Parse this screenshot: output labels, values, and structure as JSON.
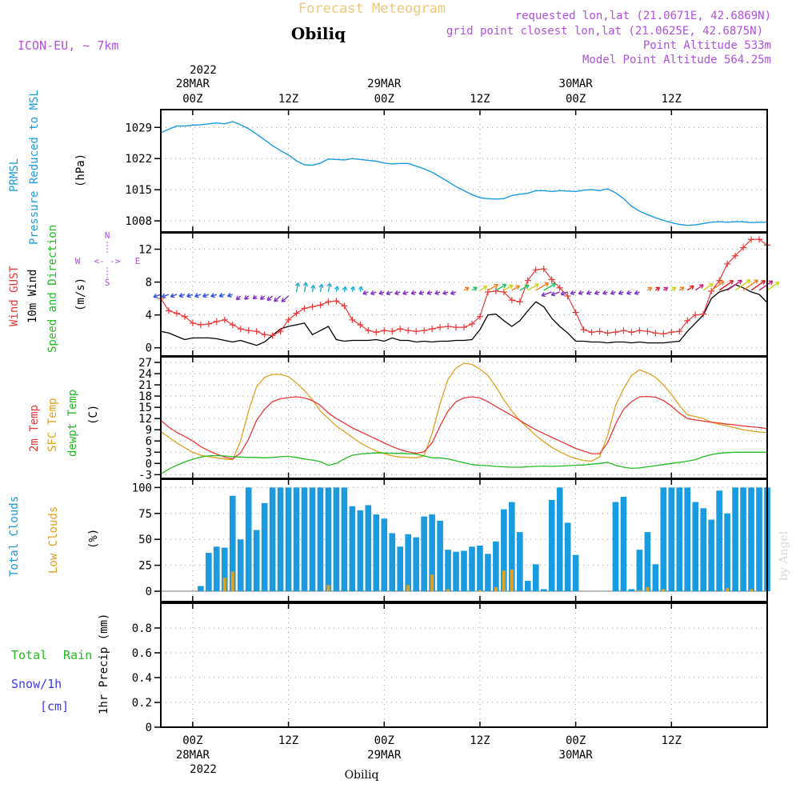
{
  "header": {
    "product": "Forecast Meteogram",
    "station": "Obiliq",
    "model": "ICON-EU, ~ 7km",
    "requested": "requested lon,lat (21.0671E, 42.6869N)",
    "gridpoint": "grid point closest lon,lat (21.0625E, 42.6875N)",
    "point_alt": "Point Altitude 533m",
    "model_alt": "Model Point Altitude 564.25m"
  },
  "colors": {
    "pressure": "#1a9be0",
    "gust": "#e83838",
    "wind": "#000000",
    "direction": "#22bb22",
    "temp2m": "#e83838",
    "sfc": "#e0a020",
    "dew": "#22bb22",
    "total_clouds": "#1a9be0",
    "low_clouds": "#e0a020",
    "rain": "#22bb22",
    "snow": "#3a3aee",
    "info": "#b050e0"
  },
  "axis_top": {
    "year": "2022",
    "labels": [
      {
        "h": 0,
        "l1": "28MAR",
        "l2": "00Z"
      },
      {
        "h": 12,
        "l1": "",
        "l2": "12Z"
      },
      {
        "h": 24,
        "l1": "29MAR",
        "l2": "00Z"
      },
      {
        "h": 36,
        "l1": "",
        "l2": "12Z"
      },
      {
        "h": 48,
        "l1": "30MAR",
        "l2": "00Z"
      },
      {
        "h": 60,
        "l1": "",
        "l2": "12Z"
      }
    ]
  },
  "axis_bottom": {
    "year": "2022",
    "labels": [
      {
        "h": 0,
        "l1": "00Z",
        "l2": "28MAR"
      },
      {
        "h": 12,
        "l1": "12Z",
        "l2": ""
      },
      {
        "h": 24,
        "l1": "00Z",
        "l2": "29MAR"
      },
      {
        "h": 36,
        "l1": "12Z",
        "l2": ""
      },
      {
        "h": 48,
        "l1": "00Z",
        "l2": "30MAR"
      },
      {
        "h": 60,
        "l1": "12Z",
        "l2": ""
      }
    ],
    "station": "Obiliq"
  },
  "watermark": "by Angel",
  "panels": {
    "pressure": {
      "title1": "PRMSL",
      "title2": "Pressure Reduced to MSL",
      "unit": "(hPa)",
      "ticks": [
        1008,
        1015,
        1022,
        1029
      ]
    },
    "wind": {
      "title1": "Wind GUST",
      "title2": "10m Wind",
      "title3": "Speed and Direction",
      "unit": "(m/s)",
      "ticks": [
        0,
        4,
        8,
        12
      ],
      "compass_n": "N",
      "compass_s": "S",
      "compass_w": "W",
      "compass_e": "E",
      "compass_arrow": "<- ->"
    },
    "temp": {
      "title1": "2m Temp",
      "title2": "SFC Temp",
      "title3": "dewpt Temp",
      "unit": "(C)",
      "ticks": [
        -3,
        0,
        3,
        6,
        9,
        12,
        15,
        18,
        21,
        24,
        27
      ]
    },
    "clouds": {
      "title1": "Total Clouds",
      "title2": "Low Clouds",
      "unit": "(%)",
      "ticks": [
        0,
        25,
        50,
        75,
        100
      ]
    },
    "precip": {
      "title1": "Total",
      "title1b": "Rain",
      "title2": "Snow/1h",
      "title3": "[cm]",
      "unit": "1hr Precip (mm)",
      "ticks": [
        "0",
        "0.2",
        "0.4",
        "0.6",
        "0.8"
      ]
    }
  },
  "chart_data": [
    {
      "type": "line",
      "title": "PRMSL Pressure Reduced to MSL",
      "ylabel": "(hPa)",
      "ylim": [
        1005.5,
        1033
      ],
      "x_hours_from_28MAR_00Z": [
        -4,
        -3,
        -2,
        -1,
        0,
        1,
        2,
        3,
        4,
        5,
        6,
        7,
        8,
        9,
        10,
        11,
        12,
        13,
        14,
        15,
        16,
        17,
        18,
        19,
        20,
        21,
        22,
        23,
        24,
        25,
        26,
        27,
        28,
        29,
        30,
        31,
        32,
        33,
        34,
        35,
        36,
        37,
        38,
        39,
        40,
        41,
        42,
        43,
        44,
        45,
        46,
        47,
        48,
        49,
        50,
        51,
        52,
        53,
        54,
        55,
        56,
        57,
        58,
        59,
        60,
        61,
        62,
        63,
        64,
        65,
        66,
        67,
        68,
        69,
        70,
        71,
        72
      ],
      "series": [
        {
          "name": "PRMSL",
          "values": [
            1027.8,
            1028.6,
            1029.3,
            1029.3,
            1029.5,
            1029.6,
            1029.8,
            1030.0,
            1029.8,
            1030.3,
            1029.6,
            1028.7,
            1027.5,
            1026.2,
            1024.9,
            1023.8,
            1022.8,
            1021.5,
            1020.6,
            1020.5,
            1021.0,
            1021.9,
            1021.8,
            1021.7,
            1022.0,
            1021.8,
            1021.6,
            1021.4,
            1021.0,
            1020.8,
            1020.9,
            1020.9,
            1020.3,
            1019.7,
            1018.9,
            1017.9,
            1016.8,
            1015.7,
            1014.8,
            1013.9,
            1013.2,
            1013.0,
            1012.9,
            1013.0,
            1013.7,
            1014.0,
            1014.2,
            1014.8,
            1014.8,
            1014.6,
            1014.8,
            1014.7,
            1014.6,
            1014.9,
            1015.0,
            1014.8,
            1015.2,
            1014.3,
            1013.0,
            1011.3,
            1010.2,
            1009.4,
            1008.7,
            1008.1,
            1007.6,
            1007.2,
            1007.0,
            1007.1,
            1007.4,
            1007.7,
            1007.8,
            1007.7,
            1007.8,
            1007.8,
            1007.6,
            1007.7,
            1007.7
          ]
        }
      ]
    },
    {
      "type": "line",
      "title": "Wind GUST / 10m Wind Speed and Direction",
      "ylabel": "(m/s)",
      "ylim": [
        -1,
        14
      ],
      "x_hours_from_28MAR_00Z": [
        -4,
        -3,
        -2,
        -1,
        0,
        1,
        2,
        3,
        4,
        5,
        6,
        7,
        8,
        9,
        10,
        11,
        12,
        13,
        14,
        15,
        16,
        17,
        18,
        19,
        20,
        21,
        22,
        23,
        24,
        25,
        26,
        27,
        28,
        29,
        30,
        31,
        32,
        33,
        34,
        35,
        36,
        37,
        38,
        39,
        40,
        41,
        42,
        43,
        44,
        45,
        46,
        47,
        48,
        49,
        50,
        51,
        52,
        53,
        54,
        55,
        56,
        57,
        58,
        59,
        60,
        61,
        62,
        63,
        64,
        65,
        66,
        67,
        68,
        69,
        70,
        71,
        72
      ],
      "series": [
        {
          "name": "Wind GUST",
          "values": [
            6.0,
            4.5,
            4.2,
            3.8,
            3.0,
            2.8,
            2.9,
            3.2,
            3.4,
            2.8,
            2.3,
            2.1,
            2.0,
            1.6,
            1.5,
            2.0,
            3.4,
            4.2,
            4.8,
            5.0,
            5.2,
            5.6,
            5.7,
            5.1,
            3.4,
            2.8,
            2.1,
            1.9,
            2.1,
            2.0,
            2.3,
            2.1,
            2.0,
            2.1,
            2.3,
            2.5,
            2.6,
            2.5,
            2.5,
            2.9,
            3.8,
            6.8,
            6.9,
            6.8,
            5.8,
            5.6,
            8.2,
            9.5,
            9.6,
            8.3,
            7.3,
            6.3,
            4.3,
            2.2,
            1.9,
            2.0,
            1.8,
            1.9,
            2.1,
            1.9,
            2.1,
            2.0,
            1.8,
            1.7,
            1.9,
            2.0,
            3.3,
            4.0,
            4.1,
            6.9,
            8.2,
            10.2,
            11.2,
            12.2,
            13.2,
            13.2,
            12.5
          ]
        },
        {
          "name": "10m Wind",
          "values": [
            2.0,
            1.8,
            1.4,
            1.0,
            1.2,
            1.2,
            1.2,
            1.1,
            0.9,
            0.7,
            0.9,
            0.6,
            0.3,
            0.7,
            1.5,
            2.3,
            2.6,
            2.8,
            3.0,
            1.6,
            2.1,
            2.6,
            1.0,
            0.8,
            0.9,
            0.9,
            0.9,
            1.0,
            0.8,
            1.2,
            0.9,
            0.9,
            0.7,
            0.8,
            0.7,
            0.8,
            0.8,
            0.9,
            0.9,
            1.0,
            2.2,
            4.0,
            4.1,
            3.3,
            2.6,
            3.3,
            4.5,
            5.6,
            5.0,
            3.6,
            2.6,
            1.8,
            0.8,
            0.8,
            0.7,
            0.7,
            0.6,
            0.7,
            0.7,
            0.6,
            0.7,
            0.6,
            0.6,
            0.6,
            0.7,
            0.8,
            2.0,
            3.0,
            4.0,
            6.0,
            6.8,
            7.1,
            7.7,
            7.3,
            6.8,
            6.5,
            5.5
          ]
        }
      ],
      "direction_note": "wind direction arrows from N/NE in first day, variable, SW in last day"
    },
    {
      "type": "line",
      "title": "2m Temp / SFC Temp / dewpt Temp",
      "ylabel": "(C)",
      "ylim": [
        -4,
        28.5
      ],
      "x_hours_from_28MAR_00Z": [
        -4,
        -3,
        -2,
        -1,
        0,
        1,
        2,
        3,
        4,
        5,
        6,
        7,
        8,
        9,
        10,
        11,
        12,
        13,
        14,
        15,
        16,
        17,
        18,
        19,
        20,
        21,
        22,
        23,
        24,
        25,
        26,
        27,
        28,
        29,
        30,
        31,
        32,
        33,
        34,
        35,
        36,
        37,
        38,
        39,
        40,
        41,
        42,
        43,
        44,
        45,
        46,
        47,
        48,
        49,
        50,
        51,
        52,
        53,
        54,
        55,
        56,
        57,
        58,
        59,
        60,
        61,
        62,
        63,
        64,
        65,
        66,
        67,
        68,
        69,
        70,
        71,
        72
      ],
      "series": [
        {
          "name": "2m Temp",
          "values": [
            11.5,
            9.7,
            8.3,
            7.2,
            6.0,
            4.5,
            3.4,
            2.5,
            1.7,
            1.2,
            2.8,
            6.5,
            11.5,
            14.5,
            16.5,
            17.3,
            17.6,
            17.8,
            17.5,
            16.8,
            15.5,
            13.5,
            12.0,
            10.8,
            9.5,
            8.5,
            7.5,
            6.5,
            5.5,
            4.5,
            3.7,
            3.1,
            2.7,
            3.1,
            5.5,
            10.0,
            14.0,
            16.5,
            17.5,
            17.8,
            17.5,
            16.5,
            15.2,
            14.0,
            12.8,
            11.5,
            10.2,
            9.0,
            8.0,
            7.0,
            6.0,
            5.0,
            4.0,
            3.3,
            2.6,
            2.6,
            5.5,
            10.5,
            14.5,
            16.5,
            17.8,
            17.9,
            17.7,
            16.8,
            15.3,
            13.5,
            12.0,
            11.6,
            11.3,
            11.0,
            10.8,
            10.5,
            10.3,
            10.0,
            9.8,
            9.6,
            9.3
          ]
        },
        {
          "name": "SFC Temp",
          "values": [
            8.5,
            7.0,
            5.5,
            4.2,
            3.0,
            2.2,
            1.8,
            1.5,
            1.2,
            1.0,
            6.0,
            14.0,
            20.5,
            23.0,
            23.8,
            23.8,
            23.2,
            21.5,
            19.5,
            17.0,
            14.0,
            12.0,
            10.0,
            8.5,
            7.0,
            5.5,
            4.3,
            3.3,
            2.6,
            2.0,
            1.7,
            1.6,
            1.5,
            2.0,
            8.0,
            16.0,
            22.5,
            25.5,
            26.8,
            26.5,
            25.2,
            23.5,
            20.5,
            17.0,
            14.0,
            11.5,
            9.5,
            7.5,
            5.8,
            4.3,
            3.1,
            2.1,
            1.3,
            0.8,
            0.6,
            1.8,
            7.5,
            15.5,
            20.0,
            23.5,
            25.0,
            24.2,
            23.0,
            21.0,
            18.5,
            15.5,
            13.0,
            12.5,
            12.0,
            11.0,
            10.5,
            10.0,
            9.5,
            9.0,
            8.7,
            8.4,
            8.2
          ]
        },
        {
          "name": "dewpt Temp",
          "values": [
            -2.8,
            -1.5,
            -0.5,
            0.4,
            1.1,
            1.7,
            2.0,
            2.1,
            2.0,
            1.8,
            1.7,
            1.6,
            1.6,
            1.5,
            1.6,
            1.8,
            1.9,
            1.6,
            1.2,
            0.9,
            0.5,
            -0.5,
            0.0,
            1.2,
            2.2,
            2.5,
            2.7,
            2.8,
            2.8,
            2.7,
            2.7,
            2.6,
            2.5,
            2.0,
            1.5,
            1.5,
            1.2,
            0.7,
            0.2,
            -0.3,
            -0.5,
            -0.6,
            -0.8,
            -0.9,
            -1.0,
            -1.0,
            -0.9,
            -0.8,
            -0.7,
            -0.8,
            -0.7,
            -0.6,
            -0.5,
            -0.4,
            -0.2,
            0.0,
            0.3,
            -0.5,
            -1.0,
            -1.3,
            -1.2,
            -0.9,
            -0.6,
            -0.3,
            0.0,
            0.3,
            0.6,
            1.0,
            1.8,
            2.4,
            2.7,
            2.9,
            3.0,
            3.0,
            3.0,
            3.0,
            3.0
          ]
        }
      ]
    },
    {
      "type": "bar",
      "title": "Total Clouds / Low Clouds",
      "ylabel": "(%)",
      "ylim": [
        -10,
        108
      ],
      "x_hours_from_28MAR_00Z": [
        -4,
        -3,
        -2,
        -1,
        0,
        1,
        2,
        3,
        4,
        5,
        6,
        7,
        8,
        9,
        10,
        11,
        12,
        13,
        14,
        15,
        16,
        17,
        18,
        19,
        20,
        21,
        22,
        23,
        24,
        25,
        26,
        27,
        28,
        29,
        30,
        31,
        32,
        33,
        34,
        35,
        36,
        37,
        38,
        39,
        40,
        41,
        42,
        43,
        44,
        45,
        46,
        47,
        48,
        49,
        50,
        51,
        52,
        53,
        54,
        55,
        56,
        57,
        58,
        59,
        60,
        61,
        62,
        63,
        64,
        65,
        66,
        67,
        68,
        69,
        70,
        71,
        72
      ],
      "series": [
        {
          "name": "Total Clouds",
          "values": [
            0,
            0,
            0,
            0,
            0,
            5,
            37,
            43,
            42,
            92,
            50,
            100,
            59,
            85,
            100,
            100,
            100,
            100,
            100,
            100,
            100,
            100,
            100,
            100,
            82,
            78,
            83,
            74,
            70,
            56,
            43,
            55,
            52,
            72,
            74,
            68,
            40,
            38,
            39,
            43,
            44,
            36,
            48,
            79,
            86,
            57,
            10,
            26,
            2,
            88,
            100,
            66,
            35,
            0,
            0,
            0,
            0,
            86,
            91,
            2,
            40,
            57,
            26,
            100,
            100,
            100,
            100,
            86,
            80,
            69,
            97,
            75,
            100,
            100,
            100,
            100,
            100
          ]
        },
        {
          "name": "Low Clouds",
          "values": [
            0,
            0,
            0,
            0,
            0,
            0,
            0,
            0,
            13,
            19,
            0,
            0,
            0,
            0,
            0,
            0,
            0,
            0,
            0,
            0,
            0,
            6,
            0,
            0,
            0,
            0,
            0,
            0,
            0,
            0,
            0,
            6,
            0,
            0,
            16,
            0,
            2,
            0,
            0,
            0,
            1,
            0,
            4,
            20,
            21,
            0,
            0,
            0,
            0,
            0,
            0,
            0,
            0,
            0,
            0,
            0,
            0,
            0,
            0,
            0,
            1,
            4,
            0,
            2,
            0,
            0,
            0,
            0,
            0,
            0,
            0,
            3,
            0,
            0,
            2,
            0,
            0
          ]
        }
      ]
    },
    {
      "type": "bar",
      "title": "Total Rain / Snow/1h [cm]",
      "ylabel": "1hr Precip (mm)",
      "ylim": [
        0,
        1
      ],
      "x_hours_from_28MAR_00Z": [
        -4,
        72
      ],
      "series": [
        {
          "name": "Total Rain",
          "values": [
            0,
            0
          ]
        },
        {
          "name": "Snow/1h",
          "values": [
            0,
            0
          ]
        }
      ]
    }
  ]
}
